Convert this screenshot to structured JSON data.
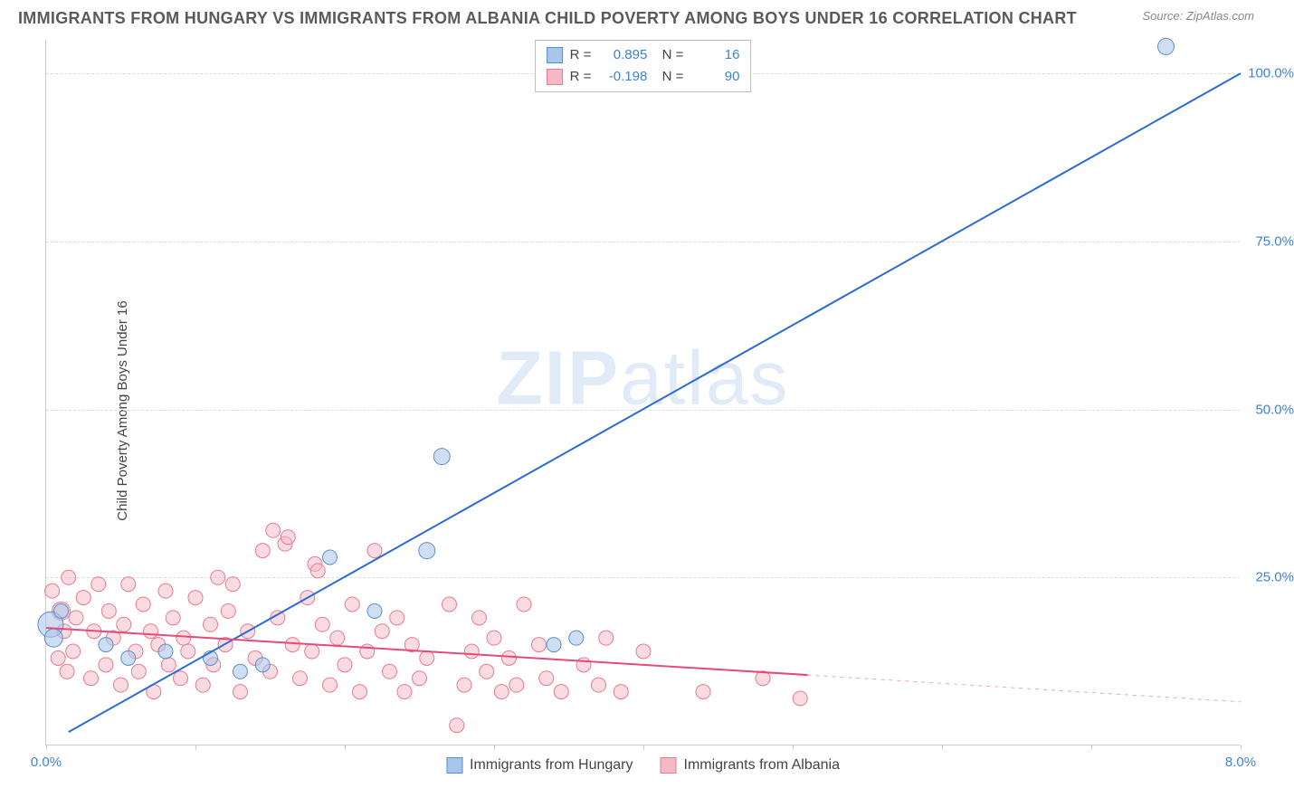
{
  "title": "IMMIGRANTS FROM HUNGARY VS IMMIGRANTS FROM ALBANIA CHILD POVERTY AMONG BOYS UNDER 16 CORRELATION CHART",
  "source": "Source: ZipAtlas.com",
  "ylabel": "Child Poverty Among Boys Under 16",
  "watermark_bold": "ZIP",
  "watermark_light": "atlas",
  "chart": {
    "type": "scatter",
    "xlim": [
      0,
      8
    ],
    "ylim": [
      0,
      105
    ],
    "yticks": [
      25,
      50,
      75,
      100
    ],
    "ytick_labels": [
      "25.0%",
      "50.0%",
      "75.0%",
      "100.0%"
    ],
    "xticks": [
      0,
      1,
      2,
      3,
      4,
      5,
      6,
      7,
      8
    ],
    "xtick_labels": {
      "0": "0.0%",
      "8": "8.0%"
    },
    "grid_color": "#dddddd",
    "axis_color": "#cccccc",
    "tick_label_color": "#3b82d6",
    "background_color": "#ffffff",
    "series": [
      {
        "name": "Immigrants from Hungary",
        "color_fill": "#a8c5ea",
        "color_stroke": "#5a8dd0",
        "fill_opacity": 0.55,
        "marker_radius": 8,
        "R": "0.895",
        "N": "16",
        "trend": {
          "x1": 0.15,
          "y1": 2,
          "x2": 8.0,
          "y2": 100,
          "color": "#2b6cd4",
          "width": 2,
          "dash_after_x": null
        },
        "points": [
          [
            0.03,
            18,
            14
          ],
          [
            0.05,
            16,
            10
          ],
          [
            0.1,
            20,
            8
          ],
          [
            0.4,
            15,
            8
          ],
          [
            0.55,
            13,
            8
          ],
          [
            0.8,
            14,
            8
          ],
          [
            1.1,
            13,
            8
          ],
          [
            1.3,
            11,
            8
          ],
          [
            1.45,
            12,
            8
          ],
          [
            1.9,
            28,
            8
          ],
          [
            2.2,
            20,
            8
          ],
          [
            2.55,
            29,
            9
          ],
          [
            2.65,
            43,
            9
          ],
          [
            3.4,
            15,
            8
          ],
          [
            3.55,
            16,
            8
          ],
          [
            7.5,
            104,
            9
          ]
        ]
      },
      {
        "name": "Immigrants from Albania",
        "color_fill": "#f5b8c5",
        "color_stroke": "#e87a94",
        "fill_opacity": 0.5,
        "marker_radius": 8,
        "R": "-0.198",
        "N": "90",
        "trend": {
          "x1": 0,
          "y1": 17.5,
          "x2": 8.0,
          "y2": 6.5,
          "color": "#e84a78",
          "width": 2,
          "dash_after_x": 5.1
        },
        "points": [
          [
            0.04,
            23,
            8
          ],
          [
            0.08,
            13,
            8
          ],
          [
            0.1,
            20,
            10
          ],
          [
            0.12,
            17,
            8
          ],
          [
            0.14,
            11,
            8
          ],
          [
            0.15,
            25,
            8
          ],
          [
            0.18,
            14,
            8
          ],
          [
            0.2,
            19,
            8
          ],
          [
            0.25,
            22,
            8
          ],
          [
            0.3,
            10,
            8
          ],
          [
            0.32,
            17,
            8
          ],
          [
            0.35,
            24,
            8
          ],
          [
            0.4,
            12,
            8
          ],
          [
            0.42,
            20,
            8
          ],
          [
            0.45,
            16,
            8
          ],
          [
            0.5,
            9,
            8
          ],
          [
            0.52,
            18,
            8
          ],
          [
            0.55,
            24,
            8
          ],
          [
            0.6,
            14,
            8
          ],
          [
            0.62,
            11,
            8
          ],
          [
            0.65,
            21,
            8
          ],
          [
            0.7,
            17,
            8
          ],
          [
            0.72,
            8,
            8
          ],
          [
            0.75,
            15,
            8
          ],
          [
            0.8,
            23,
            8
          ],
          [
            0.82,
            12,
            8
          ],
          [
            0.85,
            19,
            8
          ],
          [
            0.9,
            10,
            8
          ],
          [
            0.92,
            16,
            8
          ],
          [
            0.95,
            14,
            8
          ],
          [
            1.0,
            22,
            8
          ],
          [
            1.05,
            9,
            8
          ],
          [
            1.1,
            18,
            8
          ],
          [
            1.12,
            12,
            8
          ],
          [
            1.15,
            25,
            8
          ],
          [
            1.2,
            15,
            8
          ],
          [
            1.22,
            20,
            8
          ],
          [
            1.25,
            24,
            8
          ],
          [
            1.3,
            8,
            8
          ],
          [
            1.35,
            17,
            8
          ],
          [
            1.4,
            13,
            8
          ],
          [
            1.45,
            29,
            8
          ],
          [
            1.5,
            11,
            8
          ],
          [
            1.52,
            32,
            8
          ],
          [
            1.55,
            19,
            8
          ],
          [
            1.6,
            30,
            8
          ],
          [
            1.62,
            31,
            8
          ],
          [
            1.65,
            15,
            8
          ],
          [
            1.7,
            10,
            8
          ],
          [
            1.75,
            22,
            8
          ],
          [
            1.78,
            14,
            8
          ],
          [
            1.8,
            27,
            8
          ],
          [
            1.82,
            26,
            8
          ],
          [
            1.85,
            18,
            8
          ],
          [
            1.9,
            9,
            8
          ],
          [
            1.95,
            16,
            8
          ],
          [
            2.0,
            12,
            8
          ],
          [
            2.05,
            21,
            8
          ],
          [
            2.1,
            8,
            8
          ],
          [
            2.15,
            14,
            8
          ],
          [
            2.2,
            29,
            8
          ],
          [
            2.25,
            17,
            8
          ],
          [
            2.3,
            11,
            8
          ],
          [
            2.35,
            19,
            8
          ],
          [
            2.4,
            8,
            8
          ],
          [
            2.45,
            15,
            8
          ],
          [
            2.5,
            10,
            8
          ],
          [
            2.55,
            13,
            8
          ],
          [
            2.7,
            21,
            8
          ],
          [
            2.75,
            3,
            8
          ],
          [
            2.8,
            9,
            8
          ],
          [
            2.85,
            14,
            8
          ],
          [
            2.9,
            19,
            8
          ],
          [
            2.95,
            11,
            8
          ],
          [
            3.0,
            16,
            8
          ],
          [
            3.05,
            8,
            8
          ],
          [
            3.1,
            13,
            8
          ],
          [
            3.15,
            9,
            8
          ],
          [
            3.2,
            21,
            8
          ],
          [
            3.3,
            15,
            8
          ],
          [
            3.35,
            10,
            8
          ],
          [
            3.45,
            8,
            8
          ],
          [
            3.6,
            12,
            8
          ],
          [
            3.7,
            9,
            8
          ],
          [
            3.75,
            16,
            8
          ],
          [
            3.85,
            8,
            8
          ],
          [
            4.0,
            14,
            8
          ],
          [
            4.4,
            8,
            8
          ],
          [
            4.8,
            10,
            8
          ],
          [
            5.05,
            7,
            8
          ]
        ]
      }
    ]
  }
}
